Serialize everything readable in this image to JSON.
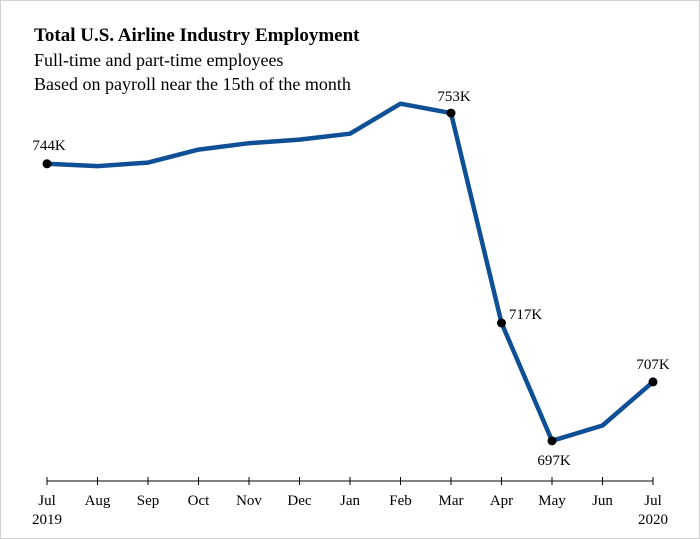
{
  "chart_data": {
    "type": "line",
    "title": "Total U.S. Airline Industry Employment",
    "subtitles": [
      "Full-time and part-time employees",
      "Based on payroll near the 15th of the month"
    ],
    "categories": [
      "Jul",
      "Aug",
      "Sep",
      "Oct",
      "Nov",
      "Dec",
      "Jan",
      "Feb",
      "Mar",
      "Apr",
      "May",
      "Jun",
      "Jul"
    ],
    "year_labels": [
      "2019",
      "",
      "",
      "",
      "",
      "",
      "",
      "",
      "",
      "",
      "",
      "",
      "2020"
    ],
    "series": [
      {
        "values": [
          744,
          743.6,
          744.2,
          746.4,
          747.5,
          748.1,
          749.1,
          754.2,
          752.6,
          717,
          697,
          699.6,
          707
        ]
      }
    ],
    "data_labels": [
      "744K",
      "",
      "",
      "",
      "",
      "",
      "",
      "",
      "753K",
      "717K",
      "697K",
      "",
      "707K"
    ],
    "ylim": [
      670,
      765
    ],
    "grid": false,
    "line_color": "#0f4f96",
    "marker_color": "#000000",
    "axis_color": "#000000"
  }
}
